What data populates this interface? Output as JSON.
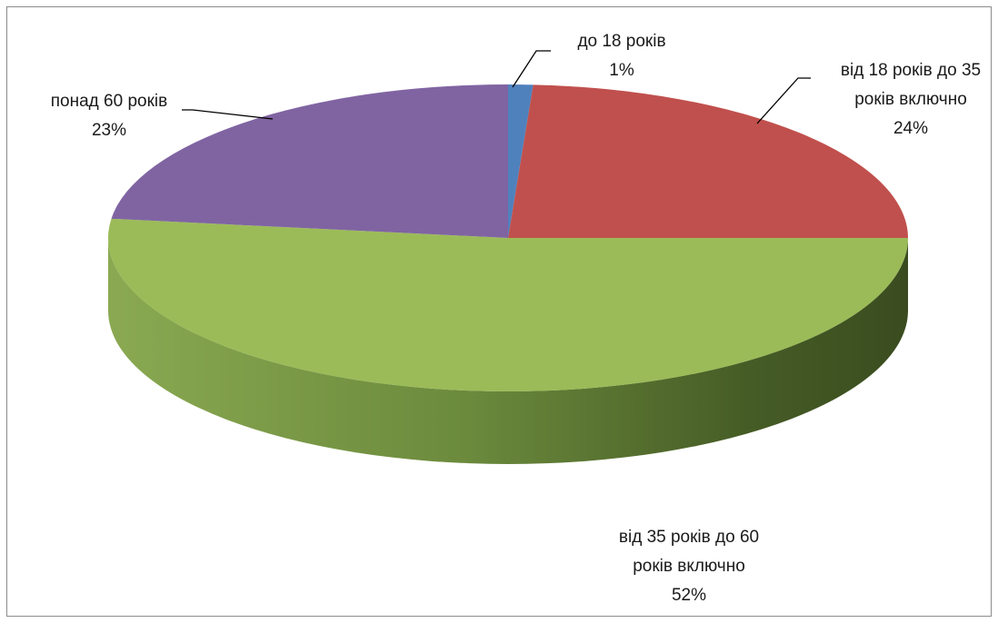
{
  "chart_data": {
    "type": "pie",
    "three_d": true,
    "title": "",
    "legend": "none",
    "slices": [
      {
        "label_lines": [
          "до 18 років"
        ],
        "value": 1,
        "value_label": "1%",
        "color": "#4f81bd"
      },
      {
        "label_lines": [
          "від 18 років до 35",
          "років включно"
        ],
        "value": 24,
        "value_label": "24%",
        "color": "#c0504d"
      },
      {
        "label_lines": [
          "від 35 років до 60",
          "років включно"
        ],
        "value": 52,
        "value_label": "52%",
        "color": "#9bbb59"
      },
      {
        "label_lines": [
          "понад 60 років"
        ],
        "value": 23,
        "value_label": "23%",
        "color": "#8064a2"
      }
    ]
  }
}
